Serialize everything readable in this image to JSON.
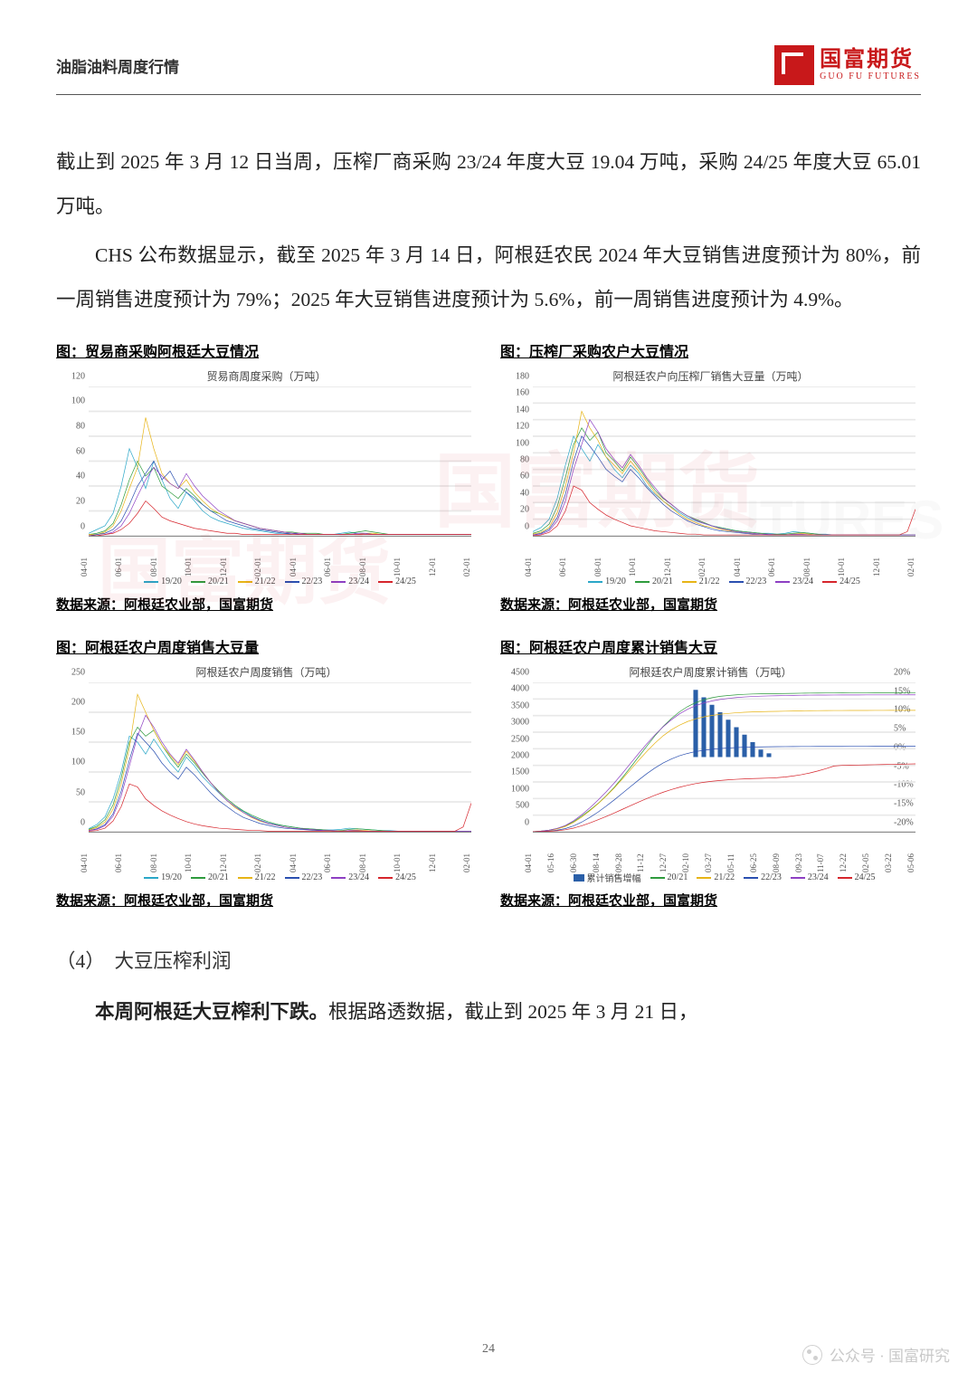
{
  "header": {
    "title": "油脂油料周度行情"
  },
  "logo": {
    "cn": "国富期货",
    "en": "GUO FU FUTURES"
  },
  "paragraphs": {
    "p1": "截止到 2025 年 3 月 12 日当周，压榨厂商采购 23/24 年度大豆 19.04 万吨，采购 24/25 年度大豆 65.01 万吨。",
    "p2": "CHS 公布数据显示，截至 2025 年 3 月 14 日，阿根廷农民 2024 年大豆销售进度预计为 80%，前一周销售进度预计为 79%；2025 年大豆销售进度预计为 5.6%，前一周销售进度预计为 4.9%。"
  },
  "section": {
    "num": "（4）",
    "title": "大豆压榨利润"
  },
  "tail": {
    "bold": "本周阿根廷大豆榨利下跌。",
    "rest": "根据路透数据，截止到 2025 年 3 月 21 日，"
  },
  "pageNumber": "24",
  "footer": {
    "label": "公众号 · 国富研究"
  },
  "colors": {
    "s1": "#2aa7c8",
    "s2": "#2e9b3d",
    "s3": "#e7b416",
    "s4": "#2a4fb0",
    "s5": "#8d3fc3",
    "s6": "#d6252c",
    "bar": "#2a5fa8",
    "grid": "#e8e8e8",
    "axis": "#888888"
  },
  "seriesLabels": [
    "19/20",
    "20/21",
    "21/22",
    "22/23",
    "23/24",
    "24/25"
  ],
  "xTicks": [
    "04-01",
    "06-01",
    "08-01",
    "10-01",
    "12-01",
    "02-01",
    "04-01",
    "06-01",
    "08-01",
    "10-01",
    "12-01",
    "02-01"
  ],
  "xTicks4": [
    "04-01",
    "05-16",
    "06-30",
    "08-14",
    "09-28",
    "11-12",
    "12-27",
    "02-10",
    "03-27",
    "05-11",
    "06-25",
    "08-09",
    "09-23",
    "11-07",
    "12-22",
    "02-05",
    "03-22",
    "05-06"
  ],
  "charts": [
    {
      "caption": "图：贸易商采购阿根廷大豆情况",
      "title": "贸易商周度采购（万吨）",
      "source": "数据来源：阿根廷农业部，国富期货",
      "type": "line",
      "ylim": [
        0,
        120
      ],
      "ytick_step": 20,
      "legend_kind": "lines",
      "series": {
        "19/20": [
          2,
          5,
          8,
          18,
          40,
          70,
          55,
          38,
          60,
          45,
          30,
          22,
          35,
          28,
          20,
          15,
          12,
          10,
          8,
          6,
          5,
          4,
          3,
          2,
          2,
          1,
          1,
          1,
          1,
          1,
          1,
          2,
          3,
          2,
          2,
          1,
          1,
          1,
          1,
          1,
          1,
          1,
          1,
          1,
          1,
          1,
          1,
          1
        ],
        "20/21": [
          1,
          2,
          4,
          10,
          25,
          45,
          60,
          48,
          55,
          40,
          35,
          30,
          38,
          32,
          25,
          20,
          18,
          15,
          12,
          10,
          8,
          6,
          5,
          4,
          3,
          3,
          2,
          2,
          2,
          1,
          1,
          1,
          2,
          3,
          4,
          3,
          2,
          1,
          1,
          1,
          1,
          1,
          1,
          1,
          1,
          1,
          1,
          1
        ],
        "21/22": [
          1,
          1,
          3,
          8,
          20,
          38,
          55,
          95,
          70,
          50,
          42,
          38,
          45,
          35,
          28,
          22,
          18,
          15,
          12,
          10,
          8,
          6,
          5,
          4,
          3,
          2,
          2,
          1,
          1,
          1,
          1,
          1,
          1,
          1,
          2,
          2,
          1,
          1,
          1,
          1,
          1,
          1,
          1,
          1,
          1,
          1,
          1,
          1
        ],
        "22/23": [
          0,
          1,
          2,
          5,
          12,
          25,
          40,
          50,
          60,
          45,
          52,
          40,
          35,
          30,
          25,
          20,
          16,
          12,
          10,
          8,
          6,
          5,
          4,
          3,
          2,
          2,
          1,
          1,
          1,
          1,
          1,
          1,
          1,
          1,
          1,
          1,
          1,
          1,
          1,
          1,
          1,
          1,
          1,
          1,
          1,
          1,
          1,
          1
        ],
        "23/24": [
          0,
          0,
          1,
          3,
          8,
          18,
          32,
          45,
          55,
          48,
          42,
          38,
          50,
          40,
          32,
          26,
          20,
          16,
          12,
          10,
          8,
          6,
          5,
          4,
          3,
          2,
          2,
          1,
          1,
          1,
          1,
          1,
          1,
          2,
          2,
          1,
          1,
          1,
          1,
          1,
          1,
          1,
          1,
          1,
          1,
          1,
          1,
          1
        ],
        "24/25": [
          0,
          0,
          1,
          2,
          5,
          10,
          18,
          28,
          22,
          15,
          12,
          10,
          8,
          6,
          5,
          4,
          3,
          2,
          2,
          1,
          1,
          1,
          1,
          1,
          1,
          1,
          1,
          1,
          1,
          1,
          1,
          1,
          1,
          1,
          1,
          1,
          1,
          1,
          1,
          1,
          1,
          1,
          1,
          1,
          1,
          1,
          1,
          1
        ]
      }
    },
    {
      "caption": "图：压榨厂采购农户大豆情况",
      "title": "阿根廷农户向压榨厂销售大豆量（万吨）",
      "source": "数据来源：阿根廷农业部，国富期货",
      "type": "line",
      "ylim": [
        0,
        180
      ],
      "ytick_step": 20,
      "legend_kind": "lines",
      "series": {
        "19/20": [
          5,
          10,
          20,
          45,
          85,
          120,
          105,
          90,
          110,
          95,
          80,
          70,
          85,
          75,
          60,
          50,
          42,
          35,
          28,
          22,
          18,
          15,
          12,
          10,
          8,
          6,
          5,
          4,
          3,
          3,
          2,
          3,
          5,
          4,
          3,
          2,
          2,
          1,
          1,
          1,
          1,
          1,
          1,
          1,
          1,
          1,
          1,
          1
        ],
        "20/21": [
          3,
          6,
          14,
          35,
          70,
          110,
          130,
          115,
          125,
          100,
          90,
          78,
          95,
          82,
          68,
          55,
          45,
          38,
          30,
          24,
          20,
          16,
          12,
          10,
          8,
          6,
          5,
          4,
          3,
          2,
          2,
          2,
          3,
          4,
          3,
          2,
          1,
          1,
          1,
          1,
          1,
          1,
          1,
          1,
          1,
          1,
          1,
          1
        ],
        "21/22": [
          2,
          4,
          10,
          28,
          60,
          100,
          150,
          130,
          115,
          95,
          85,
          75,
          90,
          78,
          65,
          52,
          42,
          34,
          26,
          20,
          16,
          12,
          10,
          8,
          6,
          5,
          4,
          3,
          2,
          2,
          1,
          1,
          2,
          3,
          2,
          1,
          1,
          1,
          1,
          1,
          1,
          1,
          1,
          1,
          1,
          1,
          1,
          1
        ],
        "22/23": [
          1,
          3,
          8,
          22,
          50,
          90,
          120,
          108,
          95,
          80,
          72,
          65,
          80,
          70,
          58,
          48,
          38,
          30,
          24,
          18,
          14,
          11,
          8,
          6,
          5,
          4,
          3,
          2,
          2,
          1,
          1,
          1,
          1,
          1,
          1,
          1,
          1,
          1,
          1,
          1,
          1,
          1,
          1,
          1,
          1,
          1,
          1,
          1
        ],
        "23/24": [
          1,
          2,
          6,
          18,
          42,
          80,
          110,
          140,
          125,
          105,
          92,
          82,
          98,
          85,
          70,
          58,
          46,
          38,
          30,
          24,
          19,
          15,
          12,
          9,
          7,
          5,
          4,
          3,
          2,
          2,
          1,
          1,
          2,
          2,
          1,
          1,
          1,
          1,
          1,
          1,
          1,
          1,
          1,
          1,
          1,
          1,
          1,
          1
        ],
        "24/25": [
          0,
          1,
          4,
          12,
          30,
          60,
          55,
          40,
          32,
          25,
          20,
          16,
          12,
          10,
          8,
          6,
          5,
          4,
          3,
          2,
          2,
          1,
          1,
          1,
          1,
          1,
          1,
          1,
          1,
          1,
          1,
          1,
          1,
          1,
          1,
          1,
          1,
          1,
          1,
          1,
          1,
          1,
          1,
          1,
          1,
          1,
          5,
          32
        ]
      }
    },
    {
      "caption": "图：阿根廷农户周度销售大豆量",
      "title": "阿根廷农户周度销售（万吨）",
      "source": "数据来源：阿根廷农业部，国富期货",
      "type": "line",
      "ylim": [
        0,
        250
      ],
      "ytick_step": 50,
      "legend_kind": "lines",
      "series": {
        "19/20": [
          5,
          12,
          25,
          55,
          100,
          160,
          150,
          130,
          155,
          135,
          115,
          100,
          125,
          110,
          92,
          78,
          65,
          52,
          42,
          34,
          26,
          20,
          15,
          12,
          10,
          8,
          6,
          5,
          4,
          3,
          3,
          4,
          6,
          5,
          4,
          3,
          2,
          2,
          1,
          1,
          1,
          1,
          1,
          1,
          1,
          1,
          1,
          1
        ],
        "20/21": [
          4,
          9,
          20,
          45,
          90,
          150,
          175,
          160,
          170,
          145,
          125,
          108,
          130,
          115,
          98,
          82,
          68,
          55,
          44,
          35,
          28,
          22,
          17,
          13,
          10,
          8,
          6,
          5,
          4,
          3,
          2,
          2,
          4,
          5,
          4,
          3,
          2,
          1,
          1,
          1,
          1,
          1,
          1,
          1,
          1,
          1,
          1,
          1
        ],
        "21/22": [
          3,
          7,
          16,
          38,
          80,
          140,
          230,
          200,
          170,
          145,
          128,
          112,
          135,
          118,
          100,
          82,
          66,
          52,
          40,
          32,
          24,
          18,
          14,
          11,
          8,
          6,
          5,
          4,
          3,
          2,
          2,
          1,
          2,
          3,
          2,
          1,
          1,
          1,
          1,
          1,
          1,
          1,
          1,
          1,
          1,
          1,
          1,
          1
        ],
        "22/23": [
          2,
          5,
          12,
          30,
          68,
          120,
          165,
          150,
          135,
          115,
          100,
          88,
          108,
          95,
          80,
          65,
          52,
          42,
          32,
          24,
          19,
          14,
          11,
          8,
          6,
          5,
          4,
          3,
          2,
          2,
          1,
          1,
          1,
          1,
          1,
          1,
          1,
          1,
          1,
          1,
          1,
          1,
          1,
          1,
          1,
          1,
          1,
          1
        ],
        "23/24": [
          2,
          4,
          10,
          26,
          60,
          110,
          160,
          195,
          175,
          150,
          130,
          115,
          138,
          120,
          100,
          82,
          66,
          52,
          42,
          32,
          25,
          19,
          14,
          11,
          8,
          6,
          5,
          4,
          3,
          2,
          2,
          1,
          2,
          2,
          1,
          1,
          1,
          1,
          1,
          1,
          1,
          1,
          1,
          1,
          1,
          1,
          1,
          1
        ],
        "24/25": [
          1,
          2,
          6,
          18,
          42,
          80,
          75,
          55,
          44,
          35,
          28,
          22,
          17,
          13,
          10,
          8,
          6,
          5,
          4,
          3,
          2,
          2,
          1,
          1,
          1,
          1,
          1,
          1,
          1,
          1,
          1,
          1,
          1,
          1,
          1,
          1,
          1,
          1,
          1,
          1,
          1,
          1,
          1,
          1,
          1,
          1,
          8,
          48
        ]
      }
    },
    {
      "caption": "图：阿根廷农户周度累计销售大豆",
      "title": "阿根廷农户周度累计销售（万吨）",
      "source": "数据来源：阿根廷农业部，国富期货",
      "type": "line_bar",
      "ylim": [
        0,
        4500
      ],
      "ytick_step": 500,
      "ylim2": [
        -20,
        20
      ],
      "ytick_step2": 5,
      "barLabel": "累计销售增幅",
      "legend_kind": "bar_lines",
      "bar": {
        "start": 20,
        "end": 30,
        "values": [
          18,
          16,
          14,
          12,
          10,
          8,
          6,
          4,
          2,
          1
        ]
      },
      "series": {
        "20/21": [
          0,
          20,
          50,
          100,
          180,
          300,
          470,
          650,
          850,
          1080,
          1340,
          1630,
          1940,
          2260,
          2580,
          2890,
          3170,
          3410,
          3610,
          3770,
          3890,
          3980,
          4040,
          4080,
          4105,
          4125,
          4140,
          4150,
          4155,
          4160,
          4162,
          4165,
          4170,
          4175,
          4178,
          4180,
          4181,
          4182,
          4183,
          4184,
          4185,
          4185,
          4186,
          4186,
          4187,
          4187,
          4188,
          4188
        ],
        "21/22": [
          0,
          15,
          40,
          85,
          160,
          280,
          440,
          630,
          840,
          1070,
          1320,
          1590,
          1870,
          2150,
          2420,
          2670,
          2890,
          3070,
          3210,
          3320,
          3400,
          3460,
          3505,
          3540,
          3565,
          3585,
          3600,
          3610,
          3618,
          3624,
          3628,
          3632,
          3638,
          3644,
          3648,
          3650,
          3651,
          3652,
          3653,
          3654,
          3655,
          3655,
          3656,
          3656,
          3657,
          3657,
          3658,
          3658
        ],
        "22/23": [
          0,
          8,
          22,
          48,
          95,
          175,
          290,
          430,
          590,
          770,
          960,
          1160,
          1360,
          1560,
          1750,
          1920,
          2070,
          2190,
          2290,
          2360,
          2415,
          2455,
          2485,
          2508,
          2525,
          2538,
          2548,
          2554,
          2558,
          2561,
          2563,
          2565,
          2567,
          2568,
          2569,
          2570,
          2570,
          2571,
          2571,
          2572,
          2572,
          2572,
          2573,
          2573,
          2573,
          2573,
          2574,
          2574
        ],
        "23/24": [
          0,
          18,
          48,
          100,
          190,
          330,
          510,
          720,
          950,
          1200,
          1470,
          1760,
          2060,
          2360,
          2650,
          2920,
          3160,
          3370,
          3550,
          3690,
          3800,
          3880,
          3940,
          3985,
          4018,
          4043,
          4062,
          4076,
          4086,
          4093,
          4098,
          4102,
          4108,
          4113,
          4116,
          4118,
          4119,
          4120,
          4121,
          4122,
          4122,
          4123,
          4123,
          4124,
          4124,
          4124,
          4125,
          4125
        ],
        "24/25": [
          0,
          5,
          14,
          30,
          60,
          110,
          180,
          265,
          360,
          460,
          565,
          675,
          785,
          895,
          1000,
          1100,
          1190,
          1270,
          1340,
          1400,
          1450,
          1490,
          1520,
          1545,
          1565,
          1580,
          1592,
          1602,
          1610,
          1618,
          1630,
          1650,
          1680,
          1720,
          1770,
          1830,
          1900,
          1980,
          2000,
          2005,
          2010,
          2015,
          2020,
          2025,
          2030,
          2035,
          2040,
          2045
        ]
      }
    }
  ]
}
